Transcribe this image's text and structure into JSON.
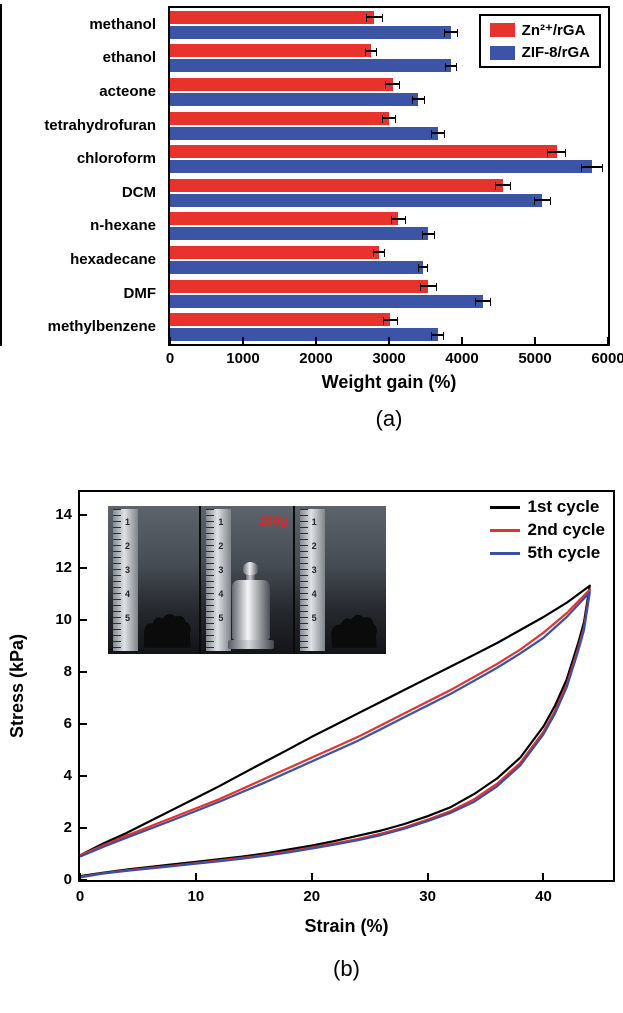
{
  "figure": {
    "panel_a_label": "(a)",
    "panel_b_label": "(b)"
  },
  "chart_data": [
    {
      "type": "bar",
      "orientation": "horizontal",
      "title": "",
      "xlabel": "Weight gain (%)",
      "xlim": [
        0,
        6000
      ],
      "xticks": [
        0,
        1000,
        2000,
        3000,
        4000,
        5000,
        6000
      ],
      "grid": false,
      "legend_position": "top-right",
      "categories": [
        "methanol",
        "ethanol",
        "acteone",
        "tetrahydrofuran",
        "chloroform",
        "DCM",
        "n-hexane",
        "hexadecane",
        "DMF",
        "methylbenzene"
      ],
      "series": [
        {
          "name": "Zn²⁺/rGA",
          "color": "#e8332d",
          "values": [
            2800,
            2750,
            3050,
            3000,
            5300,
            4560,
            3130,
            2860,
            3540,
            3020
          ],
          "errors": [
            120,
            80,
            100,
            90,
            130,
            110,
            100,
            80,
            120,
            100
          ]
        },
        {
          "name": "ZIF-8/rGA",
          "color": "#3b54a5",
          "values": [
            3850,
            3850,
            3400,
            3670,
            5780,
            5100,
            3540,
            3470,
            4290,
            3670
          ],
          "errors": [
            100,
            80,
            90,
            100,
            150,
            120,
            90,
            70,
            110,
            90
          ]
        }
      ]
    },
    {
      "type": "line",
      "title": "",
      "xlabel": "Strain (%)",
      "ylabel": "Stress (kPa)",
      "xlim": [
        0,
        46
      ],
      "ylim": [
        0,
        14.9
      ],
      "xticks": [
        0,
        10,
        20,
        30,
        40
      ],
      "yticks": [
        0,
        2,
        4,
        6,
        8,
        10,
        12,
        14
      ],
      "grid": false,
      "legend_position": "top-right",
      "series": [
        {
          "name": "1st cycle",
          "color": "#000000",
          "points": [
            [
              0,
              0.95
            ],
            [
              2,
              1.4
            ],
            [
              4,
              1.8
            ],
            [
              6,
              2.25
            ],
            [
              8,
              2.7
            ],
            [
              10,
              3.15
            ],
            [
              12,
              3.6
            ],
            [
              14,
              4.08
            ],
            [
              16,
              4.55
            ],
            [
              18,
              5.02
            ],
            [
              20,
              5.5
            ],
            [
              22,
              5.95
            ],
            [
              24,
              6.4
            ],
            [
              26,
              6.85
            ],
            [
              28,
              7.3
            ],
            [
              30,
              7.75
            ],
            [
              32,
              8.2
            ],
            [
              34,
              8.65
            ],
            [
              36,
              9.1
            ],
            [
              38,
              9.6
            ],
            [
              40,
              10.1
            ],
            [
              42,
              10.65
            ],
            [
              44,
              11.3
            ],
            [
              43.5,
              9.9
            ],
            [
              43,
              9.1
            ],
            [
              42,
              7.7
            ],
            [
              41,
              6.7
            ],
            [
              40,
              5.9
            ],
            [
              38,
              4.7
            ],
            [
              36,
              3.9
            ],
            [
              34,
              3.3
            ],
            [
              32,
              2.8
            ],
            [
              30,
              2.45
            ],
            [
              28,
              2.15
            ],
            [
              26,
              1.9
            ],
            [
              24,
              1.7
            ],
            [
              22,
              1.5
            ],
            [
              20,
              1.32
            ],
            [
              18,
              1.17
            ],
            [
              16,
              1.02
            ],
            [
              14,
              0.9
            ],
            [
              12,
              0.8
            ],
            [
              10,
              0.7
            ],
            [
              8,
              0.6
            ],
            [
              6,
              0.5
            ],
            [
              4,
              0.4
            ],
            [
              2,
              0.28
            ],
            [
              0,
              0.15
            ]
          ]
        },
        {
          "name": "2nd cycle",
          "color": "#e8302d",
          "points": [
            [
              0,
              0.95
            ],
            [
              2,
              1.33
            ],
            [
              4,
              1.7
            ],
            [
              6,
              2.05
            ],
            [
              8,
              2.4
            ],
            [
              10,
              2.75
            ],
            [
              12,
              3.1
            ],
            [
              14,
              3.5
            ],
            [
              16,
              3.9
            ],
            [
              18,
              4.3
            ],
            [
              20,
              4.7
            ],
            [
              22,
              5.1
            ],
            [
              24,
              5.5
            ],
            [
              26,
              5.95
            ],
            [
              28,
              6.4
            ],
            [
              30,
              6.85
            ],
            [
              32,
              7.3
            ],
            [
              34,
              7.8
            ],
            [
              36,
              8.3
            ],
            [
              38,
              8.85
            ],
            [
              40,
              9.5
            ],
            [
              42,
              10.25
            ],
            [
              44,
              11.15
            ],
            [
              43.5,
              9.7
            ],
            [
              43,
              8.9
            ],
            [
              42,
              7.5
            ],
            [
              41,
              6.5
            ],
            [
              40,
              5.7
            ],
            [
              38,
              4.5
            ],
            [
              36,
              3.7
            ],
            [
              34,
              3.1
            ],
            [
              32,
              2.65
            ],
            [
              30,
              2.32
            ],
            [
              28,
              2.02
            ],
            [
              26,
              1.78
            ],
            [
              24,
              1.58
            ],
            [
              22,
              1.4
            ],
            [
              20,
              1.25
            ],
            [
              18,
              1.1
            ],
            [
              16,
              0.96
            ],
            [
              14,
              0.85
            ],
            [
              12,
              0.75
            ],
            [
              10,
              0.65
            ],
            [
              8,
              0.55
            ],
            [
              6,
              0.46
            ],
            [
              4,
              0.37
            ],
            [
              2,
              0.26
            ],
            [
              0,
              0.12
            ]
          ]
        },
        {
          "name": "5th cycle",
          "color": "#3a50a2",
          "points": [
            [
              0,
              0.9
            ],
            [
              2,
              1.27
            ],
            [
              4,
              1.62
            ],
            [
              6,
              1.96
            ],
            [
              8,
              2.3
            ],
            [
              10,
              2.65
            ],
            [
              12,
              3.0
            ],
            [
              14,
              3.38
            ],
            [
              16,
              3.75
            ],
            [
              18,
              4.15
            ],
            [
              20,
              4.55
            ],
            [
              22,
              4.95
            ],
            [
              24,
              5.35
            ],
            [
              26,
              5.8
            ],
            [
              28,
              6.25
            ],
            [
              30,
              6.7
            ],
            [
              32,
              7.15
            ],
            [
              34,
              7.65
            ],
            [
              36,
              8.15
            ],
            [
              38,
              8.7
            ],
            [
              40,
              9.3
            ],
            [
              42,
              10.1
            ],
            [
              44,
              11.05
            ],
            [
              43.5,
              9.6
            ],
            [
              43,
              8.8
            ],
            [
              42,
              7.4
            ],
            [
              41,
              6.4
            ],
            [
              40,
              5.6
            ],
            [
              38,
              4.4
            ],
            [
              36,
              3.6
            ],
            [
              34,
              3.0
            ],
            [
              32,
              2.58
            ],
            [
              30,
              2.26
            ],
            [
              28,
              1.97
            ],
            [
              26,
              1.73
            ],
            [
              24,
              1.53
            ],
            [
              22,
              1.36
            ],
            [
              20,
              1.21
            ],
            [
              18,
              1.06
            ],
            [
              16,
              0.93
            ],
            [
              14,
              0.82
            ],
            [
              12,
              0.72
            ],
            [
              10,
              0.63
            ],
            [
              8,
              0.53
            ],
            [
              6,
              0.44
            ],
            [
              4,
              0.35
            ],
            [
              2,
              0.25
            ],
            [
              0,
              0.1
            ]
          ]
        }
      ],
      "inset": {
        "weight_label": "100g",
        "ruler_numbers": [
          "1",
          "2",
          "3",
          "4",
          "5"
        ]
      }
    }
  ]
}
